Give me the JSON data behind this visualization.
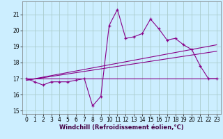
{
  "background_color": "#cceeff",
  "grid_color": "#aacccc",
  "line_color": "#880088",
  "xlim": [
    -0.5,
    23.5
  ],
  "ylim": [
    14.8,
    21.8
  ],
  "yticks": [
    15,
    16,
    17,
    18,
    19,
    20,
    21
  ],
  "xticks": [
    0,
    1,
    2,
    3,
    4,
    5,
    6,
    7,
    8,
    9,
    10,
    11,
    12,
    13,
    14,
    15,
    16,
    17,
    18,
    19,
    20,
    21,
    22,
    23
  ],
  "xlabel": "Windchill (Refroidissement éolien,°C)",
  "xlabel_fontsize": 6.0,
  "tick_fontsize": 5.5,
  "main_line_x": [
    0,
    1,
    2,
    3,
    4,
    5,
    6,
    7,
    8,
    9,
    10,
    11,
    12,
    13,
    14,
    15,
    16,
    17,
    18,
    19,
    20,
    21,
    22,
    23
  ],
  "main_line_y": [
    17.0,
    16.8,
    16.6,
    16.8,
    16.8,
    16.8,
    16.9,
    17.0,
    15.3,
    15.9,
    20.3,
    21.3,
    19.5,
    19.6,
    19.8,
    20.7,
    20.1,
    19.4,
    19.5,
    19.1,
    18.8,
    17.8,
    17.0,
    17.0
  ],
  "flat_line_x": [
    0,
    23
  ],
  "flat_line_y": [
    17.0,
    17.0
  ],
  "trend1_x": [
    0,
    23
  ],
  "trend1_y": [
    16.9,
    18.7
  ],
  "trend2_x": [
    0,
    23
  ],
  "trend2_y": [
    16.9,
    19.1
  ]
}
